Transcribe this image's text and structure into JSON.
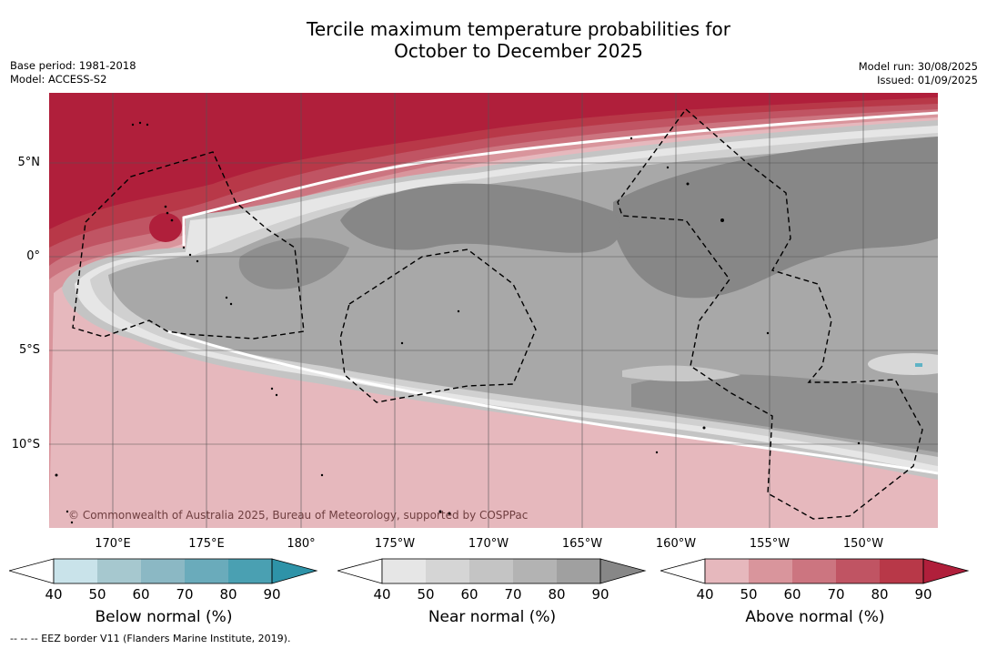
{
  "title_line1": "Tercile maximum temperature probabilities for",
  "title_line2": "October to December 2025",
  "meta_left": [
    "Base period: 1981-2018",
    "Model: ACCESS-S2"
  ],
  "meta_right": [
    "Model run: 30/08/2025",
    "Issued: 01/09/2025"
  ],
  "copyright": "© Commonwealth of Australia 2025, Bureau of Meteorology, supported by COSPPac",
  "lat_labels": [
    "5°N",
    "0°",
    "5°S",
    "10°S"
  ],
  "lon_labels": [
    "170°E",
    "175°E",
    "180°",
    "175°W",
    "170°W",
    "165°W",
    "160°W",
    "155°W",
    "150°W"
  ],
  "colorbars": [
    {
      "label": "Below normal (%)",
      "ticks": [
        "40",
        "50",
        "60",
        "70",
        "80",
        "90"
      ],
      "colors": [
        "#c9e3ea",
        "#a6c8cf",
        "#8bb8c4",
        "#6aabbb",
        "#4aa0b2",
        "#2e93a8"
      ]
    },
    {
      "label": "Near normal (%)",
      "ticks": [
        "40",
        "50",
        "60",
        "70",
        "80",
        "90"
      ],
      "colors": [
        "#e6e6e6",
        "#d5d5d5",
        "#c4c4c4",
        "#b3b3b3",
        "#a0a0a0",
        "#878787"
      ]
    },
    {
      "label": "Above normal (%)",
      "ticks": [
        "40",
        "50",
        "60",
        "70",
        "80",
        "90"
      ],
      "colors": [
        "#e6b8bd",
        "#d9959c",
        "#cc7580",
        "#c05463",
        "#b83848",
        "#b01f3b"
      ]
    }
  ],
  "footnote": "--  --  -- EEZ border V11 (Flanders Marine Institute, 2019)."
}
